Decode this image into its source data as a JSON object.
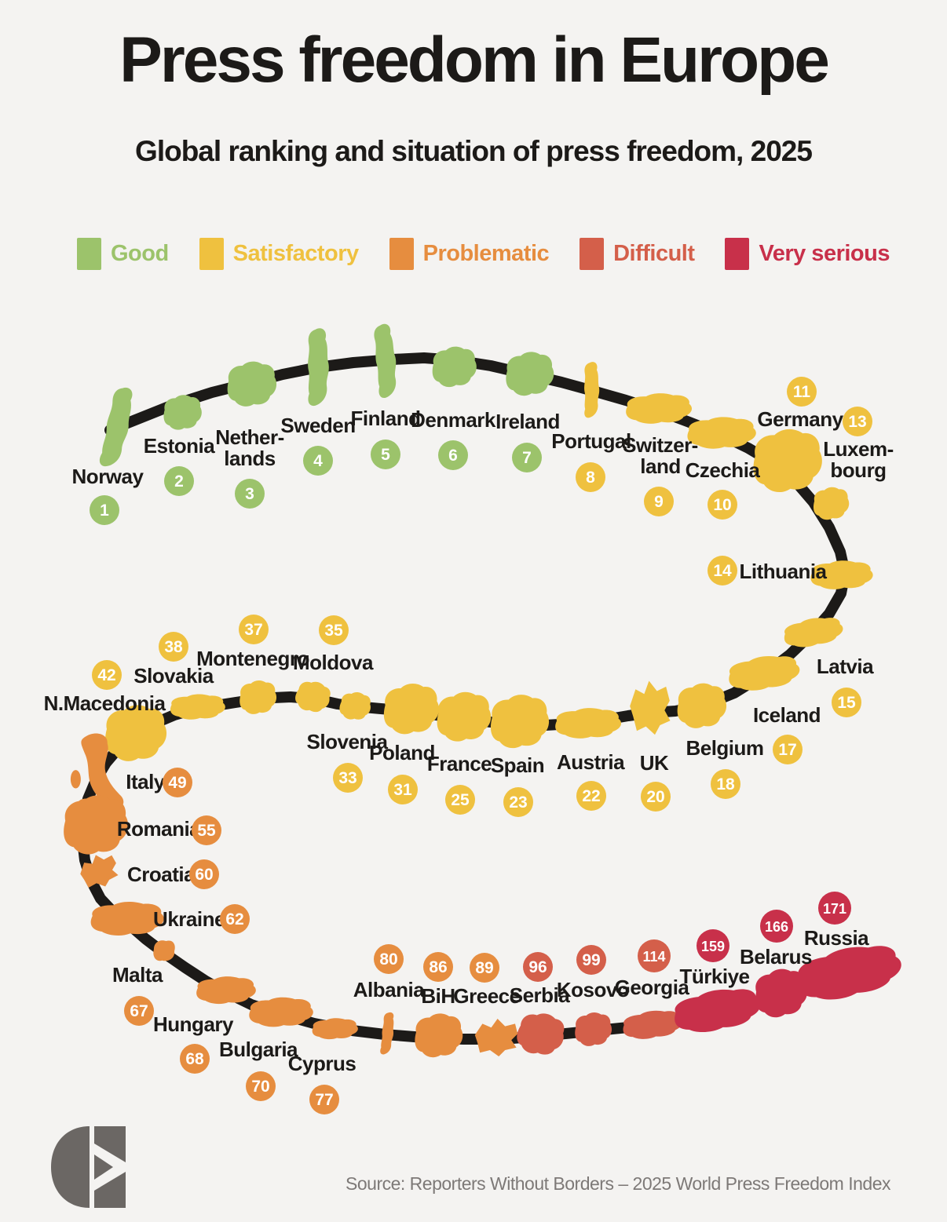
{
  "title": "Press freedom in Europe",
  "subtitle": "Global ranking and situation of press freedom, 2025",
  "legend": [
    {
      "key": "good",
      "label": "Good",
      "color": "#9cc36b"
    },
    {
      "key": "satisfactory",
      "label": "Satisfactory",
      "color": "#efc13f"
    },
    {
      "key": "problematic",
      "label": "Problematic",
      "color": "#e68d3f"
    },
    {
      "key": "difficult",
      "label": "Difficult",
      "color": "#d45f4a"
    },
    {
      "key": "very_serious",
      "label": "Very serious",
      "color": "#c8304a"
    }
  ],
  "source": "Source: Reporters Without Borders – 2025 World Press Freedom Index",
  "logo_icon": "eom-monogram",
  "chart_data": {
    "type": "ranking_path",
    "title": "Press freedom in Europe",
    "subtitle": "Global ranking and situation of press freedom, 2025",
    "rank_meaning": "global rank, 1 = most free",
    "countries": [
      {
        "name": "Norway",
        "label": "Norway",
        "rank": 1,
        "status": "good"
      },
      {
        "name": "Estonia",
        "label": "Estonia",
        "rank": 2,
        "status": "good"
      },
      {
        "name": "Netherlands",
        "label": "Nether-\nlands",
        "rank": 3,
        "status": "good"
      },
      {
        "name": "Sweden",
        "label": "Sweden",
        "rank": 4,
        "status": "good"
      },
      {
        "name": "Finland",
        "label": "Finland",
        "rank": 5,
        "status": "good"
      },
      {
        "name": "Denmark",
        "label": "Denmark",
        "rank": 6,
        "status": "good"
      },
      {
        "name": "Ireland",
        "label": "Ireland",
        "rank": 7,
        "status": "good"
      },
      {
        "name": "Portugal",
        "label": "Portugal",
        "rank": 8,
        "status": "satisfactory"
      },
      {
        "name": "Switzerland",
        "label": "Switzer-\nland",
        "rank": 9,
        "status": "satisfactory"
      },
      {
        "name": "Czechia",
        "label": "Czechia",
        "rank": 10,
        "status": "satisfactory"
      },
      {
        "name": "Germany",
        "label": "Germany",
        "rank": 11,
        "status": "satisfactory"
      },
      {
        "name": "Luxembourg",
        "label": "Luxem-\nbourg",
        "rank": 13,
        "status": "satisfactory"
      },
      {
        "name": "Lithuania",
        "label": "Lithuania",
        "rank": 14,
        "status": "satisfactory"
      },
      {
        "name": "Latvia",
        "label": "Latvia",
        "rank": 15,
        "status": "satisfactory"
      },
      {
        "name": "Iceland",
        "label": "Iceland",
        "rank": 17,
        "status": "satisfactory"
      },
      {
        "name": "Belgium",
        "label": "Belgium",
        "rank": 18,
        "status": "satisfactory"
      },
      {
        "name": "UK",
        "label": "UK",
        "rank": 20,
        "status": "satisfactory"
      },
      {
        "name": "Austria",
        "label": "Austria",
        "rank": 22,
        "status": "satisfactory"
      },
      {
        "name": "Spain",
        "label": "Spain",
        "rank": 23,
        "status": "satisfactory"
      },
      {
        "name": "France",
        "label": "France",
        "rank": 25,
        "status": "satisfactory"
      },
      {
        "name": "Poland",
        "label": "Poland",
        "rank": 31,
        "status": "satisfactory"
      },
      {
        "name": "Slovenia",
        "label": "Slovenia",
        "rank": 33,
        "status": "satisfactory"
      },
      {
        "name": "Moldova",
        "label": "Moldova",
        "rank": 35,
        "status": "satisfactory"
      },
      {
        "name": "Montenegro",
        "label": "Montenegro",
        "rank": 37,
        "status": "satisfactory"
      },
      {
        "name": "Slovakia",
        "label": "Slovakia",
        "rank": 38,
        "status": "satisfactory"
      },
      {
        "name": "N.Macedonia",
        "label": "N.Macedonia",
        "rank": 42,
        "status": "satisfactory"
      },
      {
        "name": "Italy",
        "label": "Italy",
        "rank": 49,
        "status": "problematic"
      },
      {
        "name": "Romania",
        "label": "Romania",
        "rank": 55,
        "status": "problematic"
      },
      {
        "name": "Croatia",
        "label": "Croatia",
        "rank": 60,
        "status": "problematic"
      },
      {
        "name": "Ukraine",
        "label": "Ukraine",
        "rank": 62,
        "status": "problematic"
      },
      {
        "name": "Malta",
        "label": "Malta",
        "rank": 67,
        "status": "problematic"
      },
      {
        "name": "Hungary",
        "label": "Hungary",
        "rank": 68,
        "status": "problematic"
      },
      {
        "name": "Bulgaria",
        "label": "Bulgaria",
        "rank": 70,
        "status": "problematic"
      },
      {
        "name": "Cyprus",
        "label": "Cyprus",
        "rank": 77,
        "status": "problematic"
      },
      {
        "name": "Albania",
        "label": "Albania",
        "rank": 80,
        "status": "problematic"
      },
      {
        "name": "BiH",
        "label": "BiH",
        "rank": 86,
        "status": "problematic"
      },
      {
        "name": "Greece",
        "label": "Greece",
        "rank": 89,
        "status": "problematic"
      },
      {
        "name": "Serbia",
        "label": "Serbia",
        "rank": 96,
        "status": "difficult"
      },
      {
        "name": "Kosovo",
        "label": "Kosovo",
        "rank": 99,
        "status": "difficult"
      },
      {
        "name": "Georgia",
        "label": "Georgia",
        "rank": 114,
        "status": "difficult"
      },
      {
        "name": "Türkiye",
        "label": "Türkiye",
        "rank": 159,
        "status": "very_serious"
      },
      {
        "name": "Belarus",
        "label": "Belarus",
        "rank": 166,
        "status": "very_serious"
      },
      {
        "name": "Russia",
        "label": "Russia",
        "rank": 171,
        "status": "very_serious"
      }
    ]
  }
}
